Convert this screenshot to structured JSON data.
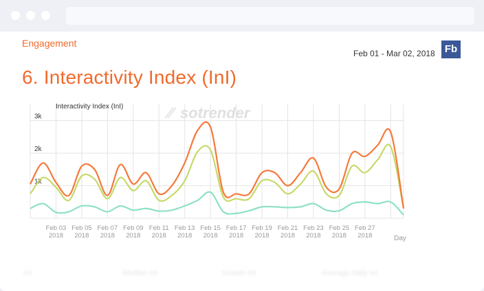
{
  "header": {
    "section_label": "Engagement",
    "date_range": "Feb 01 - Mar 02, 2018",
    "network_badge": "Fb",
    "page_title": "6. Interactivity Index (InI)"
  },
  "watermark": "sotrender",
  "footer_columns": [
    "InI",
    "Median InI",
    "Growth InI",
    "Average daily InI"
  ],
  "colors": {
    "orange": "#f5793a",
    "yellow_green": "#c6d96a",
    "teal": "#8ee0c8",
    "accent": "#f06a2b",
    "facebook": "#3b5998"
  },
  "chart_data": {
    "type": "line",
    "title": "Interactivity Index (InI)",
    "xlabel": "Day",
    "ylabel": "",
    "ylim": [
      0,
      3500
    ],
    "grid": true,
    "y_ticks": [
      {
        "value": 1000,
        "label": "1k"
      },
      {
        "value": 2000,
        "label": "2k"
      },
      {
        "value": 3000,
        "label": "3k"
      }
    ],
    "x_ticks": [
      {
        "day": 3,
        "label1": "Feb 03",
        "label2": "2018"
      },
      {
        "day": 5,
        "label1": "Feb 05",
        "label2": "2018"
      },
      {
        "day": 7,
        "label1": "Feb 07",
        "label2": "2018"
      },
      {
        "day": 9,
        "label1": "Feb 09",
        "label2": "2018"
      },
      {
        "day": 11,
        "label1": "Feb 11",
        "label2": "2018"
      },
      {
        "day": 13,
        "label1": "Feb 13",
        "label2": "2018"
      },
      {
        "day": 15,
        "label1": "Feb 15",
        "label2": "2018"
      },
      {
        "day": 17,
        "label1": "Feb 17",
        "label2": "2018"
      },
      {
        "day": 19,
        "label1": "Feb 19",
        "label2": "2018"
      },
      {
        "day": 21,
        "label1": "Feb 21",
        "label2": "2018"
      },
      {
        "day": 23,
        "label1": "Feb 23",
        "label2": "2018"
      },
      {
        "day": 25,
        "label1": "Feb 25",
        "label2": "2018"
      },
      {
        "day": 27,
        "label1": "Feb 27",
        "label2": "2018"
      }
    ],
    "x_range": [
      1,
      30
    ],
    "days": [
      1,
      2,
      3,
      4,
      5,
      6,
      7,
      8,
      9,
      10,
      11,
      12,
      13,
      14,
      15,
      16,
      17,
      18,
      19,
      20,
      21,
      22,
      23,
      24,
      25,
      26,
      27,
      28,
      29,
      30
    ],
    "series": [
      {
        "color": "#f5793a",
        "values": [
          1050,
          1700,
          1100,
          700,
          1600,
          1500,
          700,
          1650,
          1050,
          1400,
          750,
          1000,
          1700,
          2700,
          2800,
          800,
          750,
          750,
          1400,
          1400,
          1000,
          1400,
          1850,
          950,
          900,
          2000,
          1900,
          2250,
          2650,
          300
        ]
      },
      {
        "color": "#c6d96a",
        "values": [
          750,
          1250,
          950,
          550,
          1300,
          1200,
          600,
          1250,
          850,
          1150,
          550,
          700,
          1150,
          2050,
          2100,
          650,
          600,
          600,
          1150,
          1100,
          750,
          1050,
          1450,
          750,
          700,
          1600,
          1400,
          1800,
          2200,
          300
        ]
      },
      {
        "color": "#8ee0c8",
        "values": [
          300,
          450,
          180,
          200,
          380,
          350,
          200,
          380,
          250,
          300,
          220,
          250,
          380,
          550,
          800,
          200,
          150,
          230,
          350,
          350,
          330,
          350,
          450,
          250,
          230,
          450,
          500,
          450,
          500,
          100
        ]
      }
    ]
  }
}
